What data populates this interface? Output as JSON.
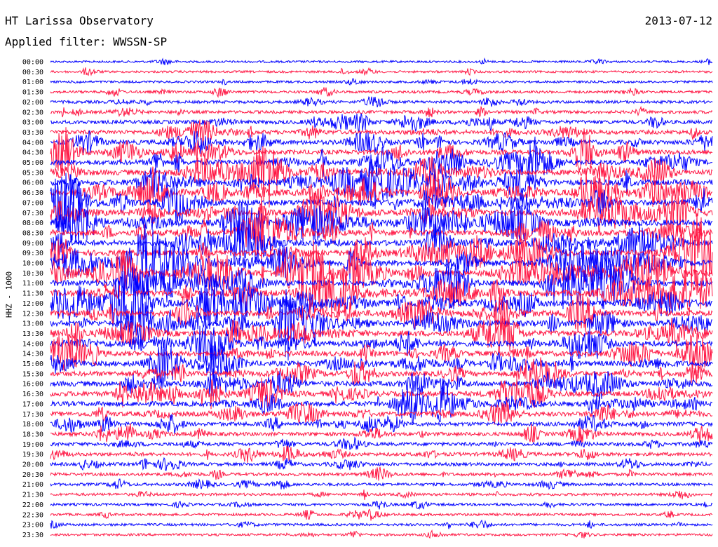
{
  "header": {
    "station": "HT Larissa Observatory",
    "filter": "Applied filter: WWSSN-SP",
    "date": "2013-07-12"
  },
  "chart_data": {
    "type": "line",
    "ylabel": "HHZ - 1000",
    "tick_labels": [
      "00:00",
      "00:30",
      "01:00",
      "01:30",
      "02:00",
      "02:30",
      "03:00",
      "03:30",
      "04:00",
      "04:30",
      "05:00",
      "05:30",
      "06:00",
      "06:30",
      "07:00",
      "07:30",
      "08:00",
      "08:30",
      "09:00",
      "09:30",
      "10:00",
      "10:30",
      "11:00",
      "11:30",
      "12:00",
      "12:30",
      "13:00",
      "13:30",
      "14:00",
      "14:30",
      "15:00",
      "15:30",
      "16:00",
      "16:30",
      "17:00",
      "17:30",
      "18:00",
      "18:30",
      "19:00",
      "19:30",
      "20:00",
      "20:30",
      "21:00",
      "21:30",
      "22:00",
      "22:30",
      "23:00",
      "23:30"
    ],
    "series_colors": [
      "#0000ff",
      "#ff1744"
    ],
    "relative_activity": [
      0.1,
      0.12,
      0.12,
      0.2,
      0.25,
      0.3,
      0.45,
      0.55,
      0.6,
      0.65,
      0.75,
      0.8,
      0.85,
      0.9,
      0.9,
      0.9,
      0.9,
      0.9,
      0.85,
      0.9,
      0.9,
      0.95,
      0.9,
      0.95,
      0.95,
      0.9,
      0.85,
      0.85,
      0.8,
      0.75,
      0.75,
      0.7,
      0.75,
      0.75,
      0.7,
      0.6,
      0.5,
      0.45,
      0.4,
      0.4,
      0.35,
      0.3,
      0.25,
      0.22,
      0.2,
      0.18,
      0.18,
      0.15
    ],
    "grid": false
  }
}
